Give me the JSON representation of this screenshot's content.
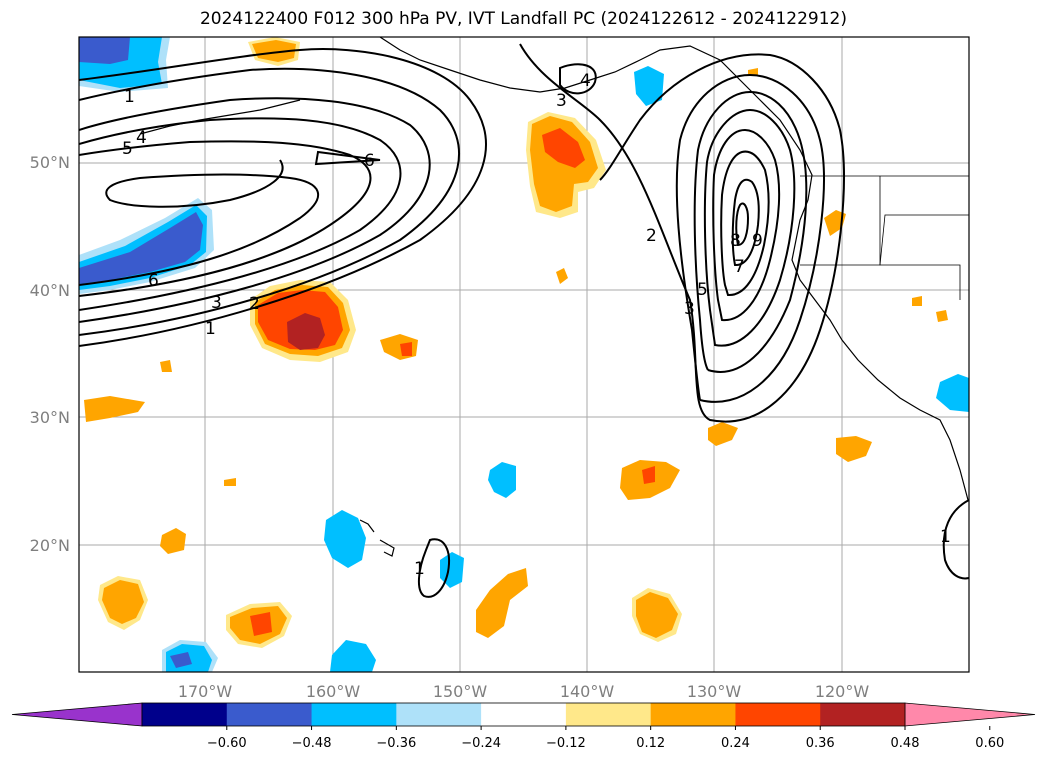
{
  "title": "2024122400 F012 300 hPa PV, IVT Landfall PC (2024122612 - 2024122912)",
  "axes": {
    "lat_labels": [
      "50°N",
      "40°N",
      "30°N",
      "20°N"
    ],
    "lon_labels": [
      "170°W",
      "160°W",
      "150°W",
      "140°W",
      "130°W",
      "120°W"
    ]
  },
  "contour_labels": [
    "1",
    "4",
    "5",
    "6",
    "6",
    "3",
    "2",
    "1",
    "3",
    "4",
    "7",
    "8",
    "9",
    "2",
    "5",
    "3",
    "1",
    "1"
  ],
  "colorbar": {
    "colors": [
      "#9933cc",
      "#00008b",
      "#3a5bcd",
      "#00bfff",
      "#aee1f9",
      "#ffffff",
      "#ffe88a",
      "#ffa500",
      "#ff4500",
      "#b22222",
      "#ff88aa"
    ],
    "ticks": [
      "−0.60",
      "−0.48",
      "−0.36",
      "−0.24",
      "−0.12",
      "0.12",
      "0.24",
      "0.36",
      "0.48",
      "0.60"
    ]
  }
}
